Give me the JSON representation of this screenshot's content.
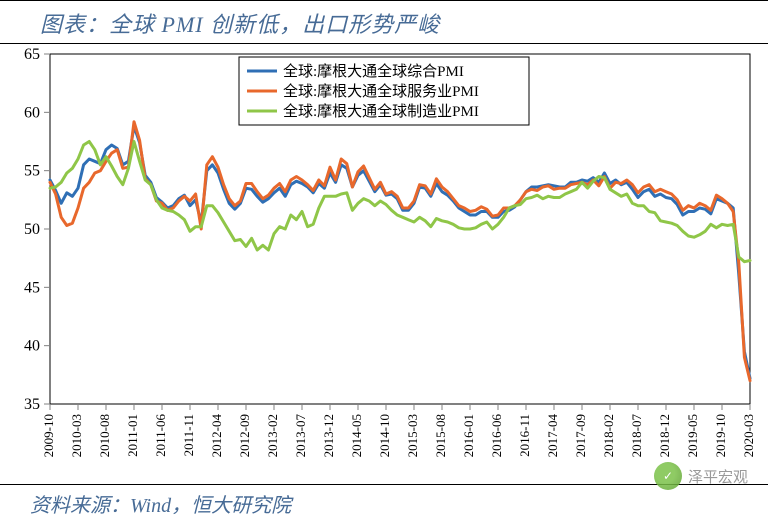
{
  "title": "图表：全球 PMI 创新低，出口形势严峻",
  "source": "资料来源：Wind，恒大研究院",
  "watermark": "泽平宏观",
  "chart": {
    "type": "line",
    "background_color": "#ffffff",
    "grid_color": "#bfbfbf",
    "border_color": "#000000",
    "tickmark_color": "#808080",
    "ylim": [
      35,
      65
    ],
    "ytick_step": 5,
    "yticks": [
      35,
      40,
      45,
      50,
      55,
      60,
      65
    ],
    "xticks": [
      "2009-10",
      "2010-03",
      "2010-08",
      "2011-01",
      "2011-06",
      "2011-11",
      "2012-04",
      "2012-09",
      "2013-02",
      "2013-07",
      "2013-12",
      "2014-05",
      "2014-10",
      "2015-03",
      "2015-08",
      "2016-01",
      "2016-06",
      "2016-11",
      "2017-04",
      "2017-09",
      "2018-02",
      "2018-07",
      "2018-12",
      "2019-05",
      "2019-10",
      "2020-03"
    ],
    "n_points": 126,
    "legend": {
      "position": "top-center",
      "border_color": "#000000",
      "items": [
        {
          "label": "全球:摩根大通全球综合PMI",
          "color": "#2f6fb5"
        },
        {
          "label": "全球:摩根大通全球服务业PMI",
          "color": "#e8682c"
        },
        {
          "label": "全球:摩根大通全球制造业PMI",
          "color": "#8fc648"
        }
      ]
    },
    "line_width": 3,
    "series": [
      {
        "name": "composite",
        "color": "#2f6fb5",
        "data": [
          54.2,
          53.3,
          52.2,
          53.1,
          52.8,
          53.5,
          55.5,
          56.0,
          55.8,
          55.6,
          56.8,
          57.2,
          56.9,
          55.5,
          55.8,
          58.8,
          57.4,
          54.6,
          54.0,
          52.7,
          52.3,
          51.8,
          52.0,
          52.6,
          52.9,
          52.0,
          52.5,
          50.5,
          55.0,
          55.5,
          54.8,
          53.4,
          52.2,
          51.7,
          52.2,
          53.5,
          53.4,
          52.8,
          52.3,
          52.6,
          53.1,
          53.5,
          52.8,
          53.8,
          54.1,
          53.9,
          53.6,
          53.1,
          53.9,
          53.5,
          54.8,
          54.0,
          55.5,
          55.2,
          53.6,
          54.6,
          55.0,
          54.1,
          53.2,
          53.8,
          52.9,
          53.0,
          52.6,
          51.6,
          51.6,
          52.2,
          53.6,
          53.5,
          52.8,
          53.9,
          53.2,
          52.9,
          52.4,
          51.8,
          51.5,
          51.2,
          51.2,
          51.5,
          51.5,
          51.0,
          51.0,
          51.5,
          51.6,
          51.9,
          52.5,
          53.2,
          53.6,
          53.6,
          53.7,
          53.8,
          53.7,
          53.6,
          53.6,
          54.0,
          54.0,
          54.2,
          54.1,
          54.4,
          54.0,
          54.8,
          53.9,
          54.2,
          53.8,
          54.0,
          53.4,
          52.7,
          53.2,
          53.4,
          52.8,
          53.0,
          52.7,
          52.6,
          52.1,
          51.2,
          51.5,
          51.5,
          51.8,
          51.7,
          51.3,
          52.6,
          52.4,
          52.2,
          51.8,
          46.1,
          39.5,
          37.2
        ]
      },
      {
        "name": "services",
        "color": "#e8682c",
        "data": [
          54.0,
          53.0,
          51.0,
          50.3,
          50.5,
          51.8,
          53.5,
          54.0,
          54.8,
          55.0,
          55.8,
          56.5,
          56.8,
          55.2,
          55.3,
          59.2,
          57.6,
          54.3,
          53.8,
          52.4,
          52.2,
          51.6,
          51.8,
          52.4,
          52.8,
          52.4,
          53.0,
          50.0,
          55.5,
          56.2,
          55.3,
          53.8,
          52.6,
          52.0,
          52.4,
          53.9,
          53.9,
          53.2,
          52.6,
          52.9,
          53.5,
          53.9,
          53.2,
          54.2,
          54.5,
          54.2,
          53.8,
          53.3,
          54.2,
          53.7,
          55.3,
          54.2,
          56.0,
          55.6,
          53.6,
          54.9,
          55.4,
          54.4,
          53.4,
          54.0,
          53.0,
          53.2,
          52.8,
          51.8,
          51.8,
          52.4,
          53.8,
          53.7,
          53.0,
          54.3,
          53.6,
          53.2,
          52.6,
          52.0,
          51.8,
          51.5,
          51.6,
          51.9,
          51.7,
          51.1,
          51.2,
          51.8,
          51.8,
          52.0,
          52.5,
          53.2,
          53.4,
          53.3,
          53.6,
          53.7,
          53.4,
          53.5,
          53.5,
          53.8,
          53.9,
          54.0,
          53.8,
          54.2,
          53.7,
          54.5,
          53.5,
          54.0,
          53.9,
          54.2,
          53.8,
          53.1,
          53.6,
          53.8,
          53.2,
          53.4,
          53.2,
          53.0,
          52.5,
          51.6,
          52.0,
          51.8,
          52.2,
          52.0,
          51.6,
          52.9,
          52.6,
          52.2,
          51.5,
          47.1,
          39.0,
          37.0
        ]
      },
      {
        "name": "manufacturing",
        "color": "#8fc648",
        "data": [
          53.5,
          53.6,
          54.0,
          54.8,
          55.2,
          56.0,
          57.2,
          57.5,
          56.8,
          55.5,
          56.2,
          55.4,
          54.5,
          53.8,
          55.2,
          57.5,
          55.8,
          54.2,
          53.8,
          52.5,
          51.8,
          51.6,
          51.5,
          51.2,
          50.8,
          49.8,
          50.2,
          50.2,
          52.0,
          52.0,
          51.4,
          50.6,
          49.8,
          49.0,
          49.1,
          48.5,
          49.2,
          48.2,
          48.6,
          48.2,
          49.6,
          50.2,
          50.0,
          51.2,
          50.8,
          51.5,
          50.2,
          50.4,
          51.8,
          52.8,
          52.8,
          52.8,
          53.0,
          53.1,
          51.6,
          52.2,
          52.6,
          52.4,
          52.0,
          52.4,
          52.1,
          51.6,
          51.2,
          51.0,
          50.8,
          50.6,
          51.0,
          50.7,
          50.2,
          50.9,
          50.7,
          50.6,
          50.4,
          50.1,
          50.0,
          50.0,
          50.1,
          50.4,
          50.6,
          50.0,
          50.4,
          51.0,
          51.8,
          52.0,
          52.1,
          52.6,
          52.7,
          52.9,
          52.6,
          52.8,
          52.7,
          52.7,
          53.0,
          53.2,
          53.4,
          54.0,
          53.5,
          54.1,
          54.5,
          54.4,
          53.4,
          53.1,
          52.8,
          53.0,
          52.2,
          52.0,
          52.0,
          51.5,
          51.4,
          50.7,
          50.6,
          50.5,
          50.3,
          49.8,
          49.4,
          49.3,
          49.5,
          49.8,
          50.4,
          50.1,
          50.4,
          50.3,
          50.4,
          47.6,
          47.2,
          47.3
        ]
      }
    ]
  }
}
